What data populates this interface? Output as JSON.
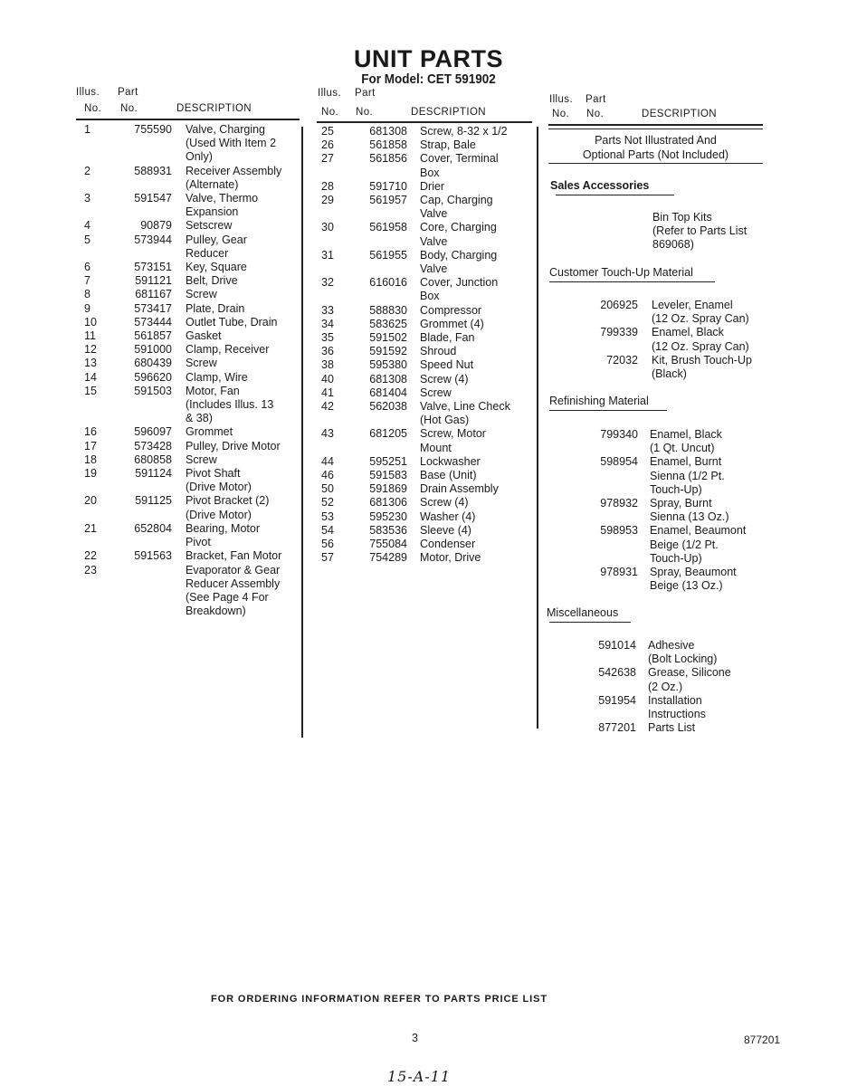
{
  "header": {
    "title": "UNIT PARTS",
    "model": "For Model: CET 591902"
  },
  "columns_header": {
    "illus": "Illus.",
    "part": "Part",
    "no": "No.",
    "description": "DESCRIPTION"
  },
  "column1": [
    {
      "illus": "1",
      "part": "755590",
      "desc": "Valve, Charging\n(Used With Item 2\nOnly)"
    },
    {
      "illus": "2",
      "part": "588931",
      "desc": "Receiver Assembly\n(Alternate)"
    },
    {
      "illus": "3",
      "part": "591547",
      "desc": "Valve, Thermo\nExpansion"
    },
    {
      "illus": "4",
      "part": "90879",
      "desc": "Setscrew"
    },
    {
      "illus": "5",
      "part": "573944",
      "desc": "Pulley, Gear\nReducer"
    },
    {
      "illus": "6",
      "part": "573151",
      "desc": "Key, Square"
    },
    {
      "illus": "7",
      "part": "591121",
      "desc": "Belt, Drive"
    },
    {
      "illus": "8",
      "part": "681167",
      "desc": "Screw"
    },
    {
      "illus": "9",
      "part": "573417",
      "desc": "Plate, Drain"
    },
    {
      "illus": "10",
      "part": "573444",
      "desc": "Outlet Tube, Drain"
    },
    {
      "illus": "11",
      "part": "561857",
      "desc": "Gasket"
    },
    {
      "illus": "12",
      "part": "591000",
      "desc": "Clamp, Receiver"
    },
    {
      "illus": "13",
      "part": "680439",
      "desc": "Screw"
    },
    {
      "illus": "14",
      "part": "596620",
      "desc": "Clamp, Wire"
    },
    {
      "illus": "15",
      "part": "591503",
      "desc": "Motor, Fan\n(Includes Illus. 13\n& 38)"
    },
    {
      "illus": "16",
      "part": "596097",
      "desc": "Grommet"
    },
    {
      "illus": "17",
      "part": "573428",
      "desc": "Pulley, Drive Motor"
    },
    {
      "illus": "18",
      "part": "680858",
      "desc": "Screw"
    },
    {
      "illus": "19",
      "part": "591124",
      "desc": "Pivot Shaft\n(Drive Motor)"
    },
    {
      "illus": "20",
      "part": "591125",
      "desc": "Pivot Bracket (2)\n(Drive Motor)"
    },
    {
      "illus": "21",
      "part": "652804",
      "desc": "Bearing, Motor\nPivot"
    },
    {
      "illus": "22",
      "part": "591563",
      "desc": "Bracket, Fan Motor"
    },
    {
      "illus": "23",
      "part": "",
      "desc": "Evaporator & Gear\nReducer Assembly\n(See Page 4 For\nBreakdown)"
    }
  ],
  "column2": [
    {
      "illus": "25",
      "part": "681308",
      "desc": "Screw, 8-32 x 1/2"
    },
    {
      "illus": "26",
      "part": "561858",
      "desc": "Strap, Bale"
    },
    {
      "illus": "27",
      "part": "561856",
      "desc": "Cover, Terminal\nBox"
    },
    {
      "illus": "28",
      "part": "591710",
      "desc": "Drier"
    },
    {
      "illus": "29",
      "part": "561957",
      "desc": "Cap, Charging\nValve"
    },
    {
      "illus": "30",
      "part": "561958",
      "desc": "Core, Charging\nValve"
    },
    {
      "illus": "31",
      "part": "561955",
      "desc": "Body, Charging\nValve"
    },
    {
      "illus": "32",
      "part": "616016",
      "desc": "Cover, Junction\nBox"
    },
    {
      "illus": "33",
      "part": "588830",
      "desc": "Compressor"
    },
    {
      "illus": "34",
      "part": "583625",
      "desc": "Grommet (4)"
    },
    {
      "illus": "35",
      "part": "591502",
      "desc": "Blade, Fan"
    },
    {
      "illus": "36",
      "part": "591592",
      "desc": "Shroud"
    },
    {
      "illus": "38",
      "part": "595380",
      "desc": "Speed Nut"
    },
    {
      "illus": "40",
      "part": "681308",
      "desc": "Screw (4)"
    },
    {
      "illus": "41",
      "part": "681404",
      "desc": "Screw"
    },
    {
      "illus": "42",
      "part": "562038",
      "desc": "Valve, Line Check\n(Hot Gas)"
    },
    {
      "illus": "43",
      "part": "681205",
      "desc": "Screw, Motor\nMount"
    },
    {
      "illus": "44",
      "part": "595251",
      "desc": "Lockwasher"
    },
    {
      "illus": "46",
      "part": "591583",
      "desc": "Base (Unit)"
    },
    {
      "illus": "50",
      "part": "591869",
      "desc": "Drain Assembly"
    },
    {
      "illus": "52",
      "part": "681306",
      "desc": "Screw (4)"
    },
    {
      "illus": "53",
      "part": "595230",
      "desc": "Washer (4)"
    },
    {
      "illus": "54",
      "part": "583536",
      "desc": "Sleeve (4)"
    },
    {
      "illus": "56",
      "part": "755084",
      "desc": "Condenser"
    },
    {
      "illus": "57",
      "part": "754289",
      "desc": "Motor, Drive"
    }
  ],
  "column3": {
    "not_illustrated": "Parts Not Illustrated And\nOptional Parts (Not Included)",
    "sales_accessories": {
      "title": "Sales Accessories",
      "items": [
        {
          "part": "",
          "desc": "Bin Top Kits\n(Refer to Parts List\n869068)"
        }
      ]
    },
    "touch_up": {
      "title": "Customer Touch-Up Material",
      "items": [
        {
          "part": "206925",
          "desc": "Leveler, Enamel\n(12 Oz. Spray Can)"
        },
        {
          "part": "799339",
          "desc": "Enamel, Black\n(12 Oz. Spray Can)"
        },
        {
          "part": "72032",
          "desc": "Kit, Brush Touch-Up\n(Black)"
        }
      ]
    },
    "refinishing": {
      "title": "Refinishing Material",
      "items": [
        {
          "part": "799340",
          "desc": "Enamel, Black\n(1 Qt. Uncut)"
        },
        {
          "part": "598954",
          "desc": "Enamel, Burnt\nSienna (1/2 Pt.\nTouch-Up)"
        },
        {
          "part": "978932",
          "desc": "Spray, Burnt\nSienna (13 Oz.)"
        },
        {
          "part": "598953",
          "desc": "Enamel, Beaumont\nBeige (1/2 Pt.\nTouch-Up)"
        },
        {
          "part": "978931",
          "desc": "Spray, Beaumont\nBeige (13 Oz.)"
        }
      ]
    },
    "miscellaneous": {
      "title": "Miscellaneous",
      "items": [
        {
          "part": "591014",
          "desc": "Adhesive\n(Bolt Locking)"
        },
        {
          "part": "542638",
          "desc": "Grease, Silicone\n(2 Oz.)"
        },
        {
          "part": "591954",
          "desc": "Installation\nInstructions"
        },
        {
          "part": "877201",
          "desc": "Parts List"
        }
      ]
    }
  },
  "footer": {
    "ordering_note": "FOR ORDERING INFORMATION REFER TO PARTS PRICE LIST",
    "page_number": "3",
    "doc_number": "877201",
    "handwritten": "15-A-11"
  }
}
